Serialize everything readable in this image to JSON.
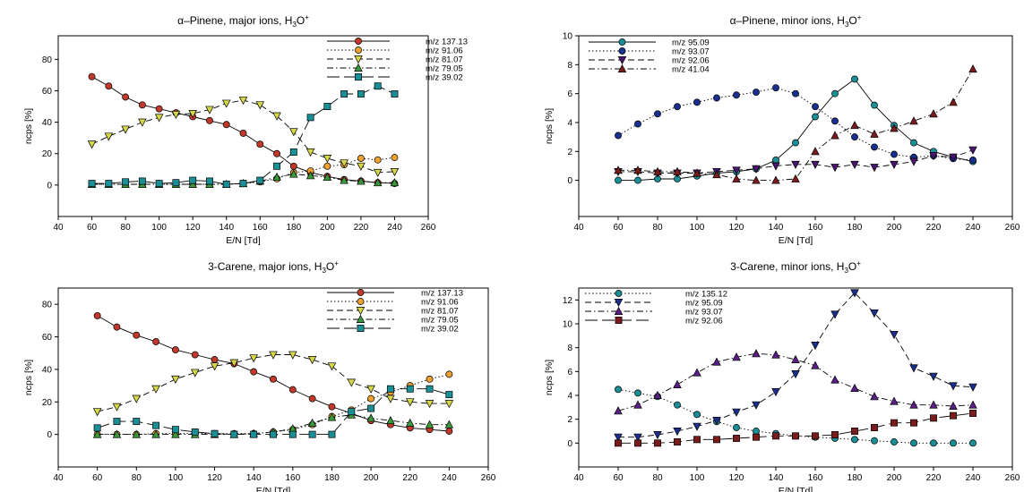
{
  "chart_data": [
    {
      "type": "line",
      "title": "α–Pinene, major ions, H₃O⁺",
      "xlabel": "E/N [Td]",
      "ylabel": "ncps [%]",
      "xlim": [
        40,
        260
      ],
      "ylim": [
        -20,
        95
      ],
      "xticks": [
        40,
        60,
        80,
        100,
        120,
        140,
        160,
        180,
        200,
        220,
        240,
        260
      ],
      "yticks": [
        0,
        20,
        40,
        60,
        80
      ],
      "grid": false,
      "legend_position": "top-right",
      "x": [
        60,
        70,
        80,
        90,
        100,
        110,
        120,
        130,
        140,
        150,
        160,
        170,
        180,
        190,
        200,
        210,
        220,
        230,
        240
      ],
      "series": [
        {
          "name": "m/z 137.13",
          "color": "#c0392b",
          "marker": "circle",
          "dash": "solid",
          "values": [
            69,
            63,
            56,
            51,
            48.5,
            46,
            43.5,
            41,
            38.5,
            33,
            26,
            20,
            12,
            8,
            5.5,
            3.5,
            2.5,
            1.5,
            1
          ]
        },
        {
          "name": "m/z 91.06",
          "color": "#f0a030",
          "marker": "circle",
          "dash": "dotted",
          "values": [
            0.5,
            0.5,
            0.5,
            0.5,
            0.5,
            0.5,
            0.5,
            0.5,
            0.5,
            1,
            2,
            4,
            8,
            9,
            12,
            13,
            17,
            16,
            17.5
          ]
        },
        {
          "name": "m/z 81.07",
          "color": "#d6d64a",
          "marker": "triangle-down",
          "dash": "dash",
          "values": [
            26,
            31,
            35.5,
            40,
            43,
            45,
            45.5,
            48,
            52,
            54,
            51,
            44,
            34,
            21,
            17,
            14,
            12,
            8,
            8.5
          ]
        },
        {
          "name": "m/z 79.05",
          "color": "#3a9a3a",
          "marker": "triangle-up",
          "dash": "dashdot",
          "values": [
            0.5,
            0.5,
            0.5,
            0.5,
            0.5,
            0.5,
            0.5,
            0.5,
            0.5,
            1,
            2.5,
            5,
            7,
            6,
            5,
            3,
            2.5,
            1.5,
            1.5
          ]
        },
        {
          "name": "m/z 39.02",
          "color": "#1a8f96",
          "marker": "square",
          "dash": "longdash",
          "values": [
            1,
            1,
            2,
            2.5,
            1,
            1.5,
            3,
            2.5,
            0.5,
            1,
            3,
            12,
            21,
            43,
            50,
            58,
            58,
            63,
            58
          ]
        }
      ]
    },
    {
      "type": "line",
      "title": "α–Pinene, minor ions, H₃O⁺",
      "xlabel": "E/N [Td]",
      "ylabel": "ncps [%]",
      "xlim": [
        40,
        260
      ],
      "ylim": [
        -2.5,
        10
      ],
      "xticks": [
        40,
        60,
        80,
        100,
        120,
        140,
        160,
        180,
        200,
        220,
        240,
        260
      ],
      "yticks": [
        0,
        2,
        4,
        6,
        8,
        10
      ],
      "grid": false,
      "legend_position": "top-left",
      "x": [
        60,
        70,
        80,
        90,
        100,
        110,
        120,
        130,
        140,
        150,
        160,
        170,
        180,
        190,
        200,
        210,
        220,
        230,
        240
      ],
      "series": [
        {
          "name": "m/z 95.09",
          "color": "#1a8f96",
          "marker": "circle",
          "dash": "solid",
          "values": [
            0,
            0,
            0.1,
            0.1,
            0.3,
            0.5,
            0.6,
            0.8,
            1.4,
            2.6,
            4.4,
            6.0,
            7.0,
            5.2,
            3.8,
            2.6,
            2.0,
            1.6,
            1.3
          ]
        },
        {
          "name": "m/z 93.07",
          "color": "#1b2f8f",
          "marker": "circle",
          "dash": "dotted",
          "values": [
            3.1,
            3.9,
            4.6,
            5.1,
            5.4,
            5.7,
            5.9,
            6.1,
            6.4,
            6.0,
            5.1,
            4.1,
            3.0,
            2.3,
            1.8,
            1.6,
            1.7,
            1.5,
            1.4
          ]
        },
        {
          "name": "m/z 92.06",
          "color": "#4a1670",
          "marker": "triangle-down",
          "dash": "dash",
          "values": [
            0.6,
            0.6,
            0.5,
            0.5,
            0.5,
            0.6,
            0.7,
            0.8,
            1.0,
            1.1,
            1.1,
            0.9,
            1.1,
            0.9,
            1.1,
            1.3,
            1.7,
            1.6,
            2.1
          ]
        },
        {
          "name": "m/z 41.04",
          "color": "#7b1c1c",
          "marker": "triangle-up",
          "dash": "dashdot",
          "values": [
            0.7,
            0.7,
            0.6,
            0.6,
            0.5,
            0.4,
            0.1,
            0,
            0,
            0.1,
            2.0,
            3.1,
            3.8,
            3.2,
            3.6,
            4.1,
            4.6,
            5.4,
            7.7
          ]
        }
      ]
    },
    {
      "type": "line",
      "title": "3-Carene, major ions, H₃O⁺",
      "xlabel": "E/N [Td]",
      "ylabel": "ncps [%]",
      "xlim": [
        40,
        260
      ],
      "ylim": [
        -20,
        90
      ],
      "xticks": [
        40,
        60,
        80,
        100,
        120,
        140,
        160,
        180,
        200,
        220,
        240,
        260
      ],
      "yticks": [
        0,
        20,
        40,
        60,
        80
      ],
      "grid": false,
      "legend_position": "top-right",
      "x": [
        60,
        70,
        80,
        90,
        100,
        110,
        120,
        130,
        140,
        150,
        160,
        170,
        180,
        190,
        200,
        210,
        220,
        230,
        240
      ],
      "series": [
        {
          "name": "m/z 137.13",
          "color": "#c0392b",
          "marker": "circle",
          "dash": "solid",
          "values": [
            73,
            66,
            61,
            57,
            52,
            49,
            46,
            43.5,
            38.5,
            34,
            27.5,
            22,
            17,
            13,
            8.5,
            6,
            4,
            3,
            2
          ]
        },
        {
          "name": "m/z 91.06",
          "color": "#f0a030",
          "marker": "circle",
          "dash": "dotted",
          "values": [
            0,
            0,
            0,
            0.5,
            0.5,
            0.5,
            0.5,
            0.5,
            0.5,
            1.5,
            3,
            6,
            11,
            15,
            22,
            26,
            30,
            34,
            37
          ]
        },
        {
          "name": "m/z 81.07",
          "color": "#d6d64a",
          "marker": "triangle-down",
          "dash": "dash",
          "values": [
            14,
            17,
            22,
            28,
            34,
            38,
            42,
            44,
            47,
            49,
            49,
            46,
            42,
            32,
            28,
            22,
            20,
            19,
            19
          ]
        },
        {
          "name": "m/z 79.05",
          "color": "#3a9a3a",
          "marker": "triangle-up",
          "dash": "dashdot",
          "values": [
            0,
            0,
            0,
            0,
            0,
            0,
            0,
            0,
            0.5,
            1.5,
            3.5,
            7,
            10.5,
            12,
            10,
            8.5,
            7,
            6,
            6
          ]
        },
        {
          "name": "m/z 39.02",
          "color": "#1a8f96",
          "marker": "square",
          "dash": "longdash",
          "values": [
            4,
            8,
            8,
            5.5,
            3,
            1.5,
            0.5,
            0,
            0,
            0,
            0,
            0,
            0,
            14,
            16,
            28,
            28,
            28,
            24.5
          ]
        }
      ]
    },
    {
      "type": "line",
      "title": "3-Carene, minor ions, H₃O⁺",
      "xlabel": "E/N [Td]",
      "ylabel": "ncps [%]",
      "xlim": [
        40,
        260
      ],
      "ylim": [
        -2,
        13
      ],
      "xticks": [
        40,
        60,
        80,
        100,
        120,
        140,
        160,
        180,
        200,
        220,
        240,
        260
      ],
      "yticks": [
        0,
        2,
        4,
        6,
        8,
        10,
        12
      ],
      "grid": false,
      "legend_position": "top-left",
      "x": [
        60,
        70,
        80,
        90,
        100,
        110,
        120,
        130,
        140,
        150,
        160,
        170,
        180,
        190,
        200,
        210,
        220,
        230,
        240
      ],
      "series": [
        {
          "name": "m/z 135.12",
          "color": "#1a8f96",
          "marker": "circle",
          "dash": "dotted",
          "values": [
            4.5,
            4.2,
            3.9,
            3.2,
            2.4,
            1.8,
            1.3,
            1.0,
            0.8,
            0.6,
            0.5,
            0.4,
            0.3,
            0.2,
            0.1,
            0,
            0,
            0,
            0
          ]
        },
        {
          "name": "m/z 95.09",
          "color": "#1b2f8f",
          "marker": "triangle-down",
          "dash": "dash",
          "values": [
            0.5,
            0.5,
            0.7,
            1.0,
            1.4,
            1.9,
            2.6,
            3.2,
            4.3,
            5.8,
            8.2,
            10.8,
            12.6,
            10.9,
            9.1,
            6.3,
            5.6,
            4.8,
            4.7
          ]
        },
        {
          "name": "m/z 93.07",
          "color": "#5a1e86",
          "marker": "triangle-up",
          "dash": "dashdot",
          "values": [
            2.7,
            3.2,
            4.0,
            4.9,
            5.9,
            6.8,
            7.2,
            7.5,
            7.4,
            7.0,
            6.5,
            5.3,
            4.6,
            3.9,
            3.5,
            3.2,
            3.2,
            3.1,
            3.2
          ]
        },
        {
          "name": "m/z 92.06",
          "color": "#7b1c1c",
          "marker": "square",
          "dash": "longdash",
          "values": [
            0,
            0,
            0,
            0.1,
            0.3,
            0.3,
            0.4,
            0.5,
            0.6,
            0.6,
            0.6,
            0.7,
            1.0,
            1.3,
            1.7,
            1.7,
            2.1,
            2.3,
            2.5
          ]
        }
      ]
    }
  ]
}
